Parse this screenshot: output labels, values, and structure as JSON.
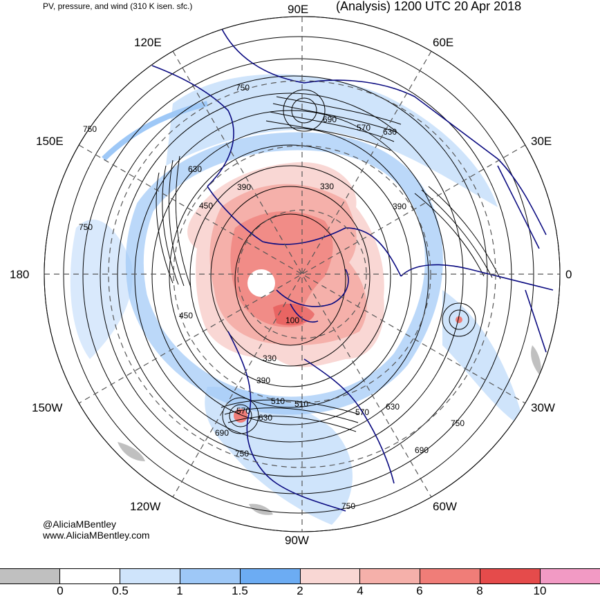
{
  "header": {
    "product_title": "PV, pressure, and wind (310 K isen. sfc.)",
    "run_title": "(Analysis) 1200 UTC 20 Apr 2018"
  },
  "longitude_labels": [
    {
      "id": "90E",
      "text": "90E"
    },
    {
      "id": "60E",
      "text": "60E"
    },
    {
      "id": "120E",
      "text": "120E"
    },
    {
      "id": "150E",
      "text": "150E"
    },
    {
      "id": "30E",
      "text": "30E"
    },
    {
      "id": "180",
      "text": "180"
    },
    {
      "id": "0",
      "text": "0"
    },
    {
      "id": "150W",
      "text": "150W"
    },
    {
      "id": "30W",
      "text": "30W"
    },
    {
      "id": "120W",
      "text": "120W"
    },
    {
      "id": "60W",
      "text": "60W"
    },
    {
      "id": "90W",
      "text": "90W"
    }
  ],
  "contour_labels": [
    "750",
    "690",
    "570",
    "630",
    "750",
    "630",
    "390",
    "330",
    "390",
    "450",
    "750",
    "450",
    "330",
    "390",
    "510",
    "570",
    "630",
    "690",
    "750",
    "510",
    "570",
    "630",
    "750",
    "690",
    "750",
    "100"
  ],
  "credits": {
    "handle": "@AliciaMBentley",
    "website": "www.AliciaMBentley.com"
  },
  "colorbar": {
    "colors": [
      "#c0c0c0",
      "#ffffff",
      "#cfe4fb",
      "#9ec8f7",
      "#6cacf3",
      "#f9d7d4",
      "#f5b0aa",
      "#f07d78",
      "#e54b4b",
      "#f29ac4"
    ],
    "tick_labels": [
      "0",
      "0.5",
      "1",
      "1.5",
      "2",
      "4",
      "6",
      "8",
      "10"
    ]
  },
  "colors": {
    "coastline": "#0a0a80",
    "contour": "#000000",
    "graticule": "#555555",
    "pv_light_blue": "#cfe4fb",
    "pv_mid_blue": "#9ec8f7",
    "pv_pink": "#f5b0aa",
    "pv_red": "#f07d78"
  }
}
